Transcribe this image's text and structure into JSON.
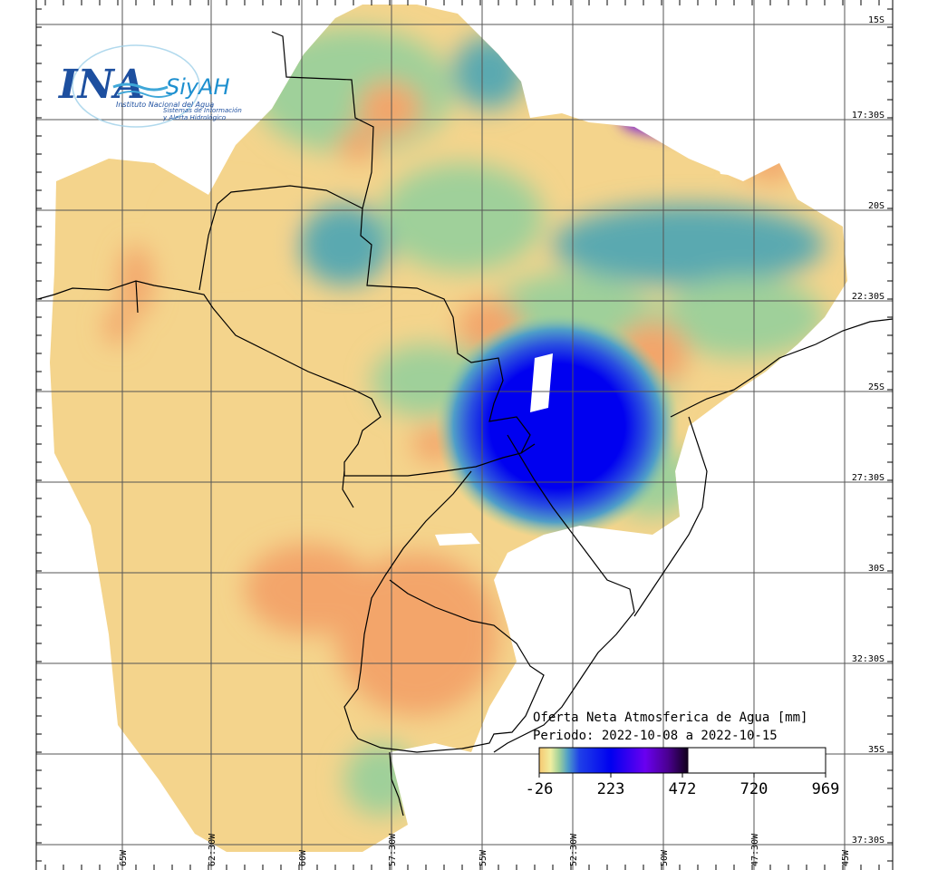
{
  "logo": {
    "main": "INA",
    "secondary": "SiyAH",
    "org": "Instituto Nacional del Agua",
    "system_line1": "Sistemas de Información",
    "system_line2": "y Alerta Hidrológico"
  },
  "grid": {
    "longitude_labels": [
      "65W",
      "62:30W",
      "60W",
      "57:30W",
      "55W",
      "52:30W",
      "50W",
      "47:30W",
      "45W"
    ],
    "latitude_labels": [
      "15S",
      "17:30S",
      "20S",
      "22:30S",
      "25S",
      "27:30S",
      "30S",
      "32:30S",
      "35S",
      "37:30S"
    ]
  },
  "legend": {
    "title": "Oferta Neta Atmosferica de Agua [mm]",
    "period": "Periodo: 2022-10-08 a 2022-10-15",
    "ticks": [
      "-26",
      "223",
      "472",
      "720",
      "969"
    ],
    "colors": [
      "#f6c870",
      "#f3dc8e",
      "#f0eea0",
      "#c8e090",
      "#7fbf9a",
      "#3f8fc0",
      "#1f4fe0",
      "#0000f0",
      "#3a00f0",
      "#8a00f0",
      "#1a0030"
    ]
  },
  "colors": {
    "low": "#f4d48c",
    "dry": "#f3a56a",
    "mid": "#9fd09a",
    "teal": "#5aa9b0",
    "blue": "#0008f0",
    "purple": "#6a00e0",
    "dark": "#10001a"
  }
}
